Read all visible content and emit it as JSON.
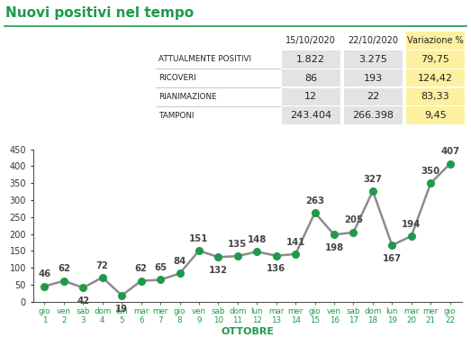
{
  "chart_data": {
    "type": "line",
    "title": "Nuovi positivi nel tempo",
    "x_label": "OTTOBRE",
    "categories": [
      "gio 1",
      "ven 2",
      "sab 3",
      "dom 4",
      "lun 5",
      "mar 6",
      "mer 7",
      "gio 8",
      "ven 9",
      "sab 10",
      "dom 11",
      "lun 12",
      "mar 13",
      "mer 14",
      "gio 15",
      "ven 16",
      "sab 17",
      "dom 18",
      "lun 19",
      "mar 20",
      "mer 21",
      "gio 22"
    ],
    "values": [
      46,
      62,
      42,
      72,
      19,
      62,
      65,
      84,
      151,
      132,
      135,
      148,
      136,
      141,
      263,
      198,
      205,
      327,
      167,
      194,
      350,
      407
    ],
    "color": "#1e9a4a",
    "marker": "o",
    "ylim": [
      0,
      450
    ],
    "yticks": [
      0,
      50,
      100,
      150,
      200,
      250,
      300,
      350,
      400,
      450
    ],
    "grid": false,
    "data_labels": true
  },
  "table": {
    "header": [
      "15/10/2020",
      "22/10/2020",
      "Variazione %"
    ],
    "rows": [
      [
        "ATTUALMENTE POSITIVI",
        "1.822",
        "3.275",
        "79,75"
      ],
      [
        "RICOVERI",
        "86",
        "193",
        "124,42"
      ],
      [
        "RIANIMAZIONE",
        "12",
        "22",
        "83,33"
      ],
      [
        "TAMPONI",
        "243.404",
        "266.398",
        "9,45"
      ]
    ]
  }
}
